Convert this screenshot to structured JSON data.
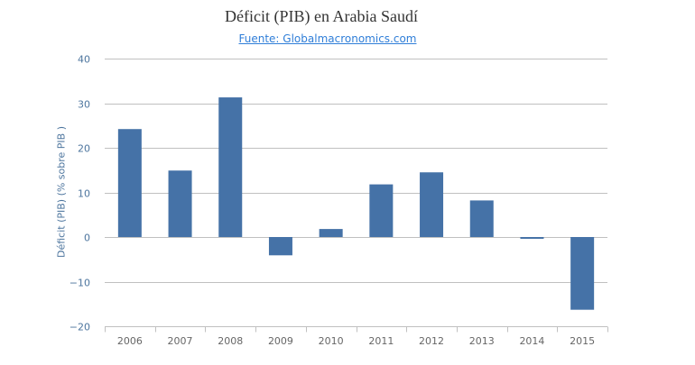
{
  "chart_data": {
    "type": "bar",
    "title": "Déficit (PIB) en Arabia Saudí",
    "subtitle": "Fuente: Globalmacronomics.com",
    "xlabel": "",
    "ylabel": "Déficit (PIB) (% sobre PIB )",
    "categories": [
      "2006",
      "2007",
      "2008",
      "2009",
      "2010",
      "2011",
      "2012",
      "2013",
      "2014",
      "2015"
    ],
    "values": [
      24.2,
      14.9,
      31.3,
      -4.1,
      1.8,
      11.8,
      14.5,
      8.2,
      -0.4,
      -16.3
    ],
    "ylim": [
      -20,
      40
    ],
    "yticks": [
      -20,
      -10,
      0,
      10,
      20,
      30,
      40
    ],
    "ytick_labels": [
      "−20",
      "−10",
      "0",
      "10",
      "20",
      "30",
      "40"
    ],
    "grid": true,
    "legend": "none",
    "colors": {
      "bar": "#4572a7",
      "grid": "#c0c0c0",
      "tick_label": "#4d759e",
      "x_tick_label": "#666666"
    }
  }
}
